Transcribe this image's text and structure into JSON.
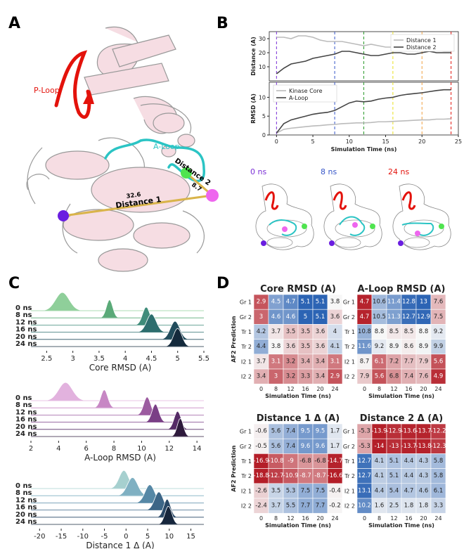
{
  "panels": {
    "A": "A",
    "B": "B",
    "C": "C",
    "D": "D"
  },
  "structure": {
    "ploop_label": "P-Loop",
    "aloop_label": "A-Loop",
    "distance1_label": "Distance 1",
    "distance2_label": "Distance 2",
    "distance1_value": "32.6",
    "distance2_value": "8.7",
    "snapshots": [
      "0 ns",
      "8 ns",
      "24 ns"
    ],
    "colors": {
      "ploop": "#e3120b",
      "aloop": "#2bc4c4",
      "protein": "#f6dde3",
      "res1": "#6a1ee0",
      "res2": "#4fe44f",
      "res3": "#ee66ee",
      "snap0": "#7a2fd6",
      "snap8": "#3555c8",
      "snap24": "#e3120b"
    }
  },
  "chart_data": [
    {
      "id": "B-top",
      "type": "line",
      "ylabel": "Distance (A)",
      "xlabel": "",
      "xlim": [
        -1,
        25
      ],
      "ylim": [
        0,
        35
      ],
      "yticks": [
        10,
        20,
        30
      ],
      "series": [
        {
          "name": "Distance 1",
          "color": "#bbbbbb",
          "x": [
            0,
            1,
            2,
            3,
            4,
            5,
            6,
            7,
            8,
            9,
            10,
            11,
            12,
            13,
            14,
            15,
            16,
            17,
            18,
            19,
            20,
            21,
            22,
            23,
            24
          ],
          "y": [
            31,
            31,
            30,
            32,
            32,
            31,
            29,
            28,
            28,
            28,
            27,
            26,
            25,
            26,
            25,
            24,
            24,
            25,
            23,
            22,
            22,
            22,
            22,
            21,
            21
          ]
        },
        {
          "name": "Distance 2",
          "color": "#444444",
          "x": [
            0,
            1,
            2,
            3,
            4,
            5,
            6,
            7,
            8,
            9,
            10,
            11,
            12,
            13,
            14,
            15,
            16,
            17,
            18,
            19,
            20,
            21,
            22,
            23,
            24
          ],
          "y": [
            5,
            9,
            12,
            13,
            14,
            16,
            17,
            18,
            19,
            21,
            21,
            20,
            19,
            18,
            18,
            19,
            20,
            20,
            19,
            19,
            20,
            21,
            20,
            20,
            20
          ]
        }
      ],
      "vlines": [
        {
          "x": 0,
          "color": "#7a2fd6"
        },
        {
          "x": 8,
          "color": "#3555c8"
        },
        {
          "x": 12,
          "color": "#2a9a2a"
        },
        {
          "x": 16,
          "color": "#e8e020"
        },
        {
          "x": 20,
          "color": "#f0a040"
        },
        {
          "x": 24,
          "color": "#e3120b"
        }
      ],
      "legend": "top-right"
    },
    {
      "id": "B-bottom",
      "type": "line",
      "ylabel": "RMSD (A)",
      "xlabel": "Simulation Time (ns)",
      "xlim": [
        -1,
        25
      ],
      "ylim": [
        0,
        14
      ],
      "yticks": [
        0,
        5,
        10
      ],
      "xticks": [
        0,
        5,
        10,
        15,
        20,
        25
      ],
      "series": [
        {
          "name": "Kinase Core",
          "color": "#bbbbbb",
          "x": [
            0,
            1,
            2,
            3,
            4,
            5,
            6,
            7,
            8,
            9,
            10,
            11,
            12,
            13,
            14,
            15,
            16,
            17,
            18,
            19,
            20,
            21,
            22,
            23,
            24
          ],
          "y": [
            0.5,
            1.5,
            1.8,
            2.0,
            2.2,
            2.4,
            2.5,
            2.7,
            2.8,
            3.0,
            3.1,
            3.2,
            3.2,
            3.3,
            3.5,
            3.5,
            3.6,
            3.7,
            3.8,
            3.9,
            4.0,
            4.0,
            4.2,
            4.2,
            4.3
          ]
        },
        {
          "name": "A-Loop",
          "color": "#444444",
          "x": [
            0,
            1,
            2,
            3,
            4,
            5,
            6,
            7,
            8,
            9,
            10,
            11,
            12,
            13,
            14,
            15,
            16,
            17,
            18,
            19,
            20,
            21,
            22,
            23,
            24
          ],
          "y": [
            0.5,
            3,
            4,
            4.5,
            5,
            5.5,
            5.8,
            6,
            6.5,
            7.5,
            8.5,
            9,
            8.8,
            9,
            9.5,
            9.8,
            10,
            10.5,
            10.8,
            11,
            11.2,
            11.5,
            11.8,
            12,
            12
          ]
        }
      ],
      "vlines": [
        {
          "x": 0,
          "color": "#7a2fd6"
        },
        {
          "x": 8,
          "color": "#3555c8"
        },
        {
          "x": 12,
          "color": "#2a9a2a"
        },
        {
          "x": 16,
          "color": "#e8e020"
        },
        {
          "x": 20,
          "color": "#f0a040"
        },
        {
          "x": 24,
          "color": "#e3120b"
        }
      ],
      "legend": "top-left"
    },
    {
      "id": "C1",
      "type": "area",
      "xlabel": "Core RMSD (A)",
      "xlim": [
        2.2,
        5.5
      ],
      "xticks": [
        2.5,
        3.0,
        3.5,
        4.0,
        4.5,
        5.0,
        5.5
      ],
      "rows": [
        {
          "label": "0 ns",
          "mean": 2.8,
          "sd": 0.13,
          "color": "#8fcf9a"
        },
        {
          "label": "8 ns",
          "mean": 3.7,
          "sd": 0.06,
          "color": "#5aaa78"
        },
        {
          "label": "12 ns",
          "mean": 4.4,
          "sd": 0.07,
          "color": "#3f8c7a"
        },
        {
          "label": "16 ns",
          "mean": 4.5,
          "sd": 0.09,
          "color": "#2d6e6e"
        },
        {
          "label": "20 ns",
          "mean": 4.95,
          "sd": 0.09,
          "color": "#214c5c"
        },
        {
          "label": "24 ns",
          "mean": 5.0,
          "sd": 0.08,
          "color": "#142a3c"
        }
      ]
    },
    {
      "id": "C2",
      "type": "area",
      "xlabel": "A-Loop RMSD (A)",
      "xlim": [
        2,
        14.5
      ],
      "xticks": [
        2,
        4,
        6,
        8,
        10,
        12,
        14
      ],
      "rows": [
        {
          "label": "0 ns",
          "mean": 4.5,
          "sd": 0.5,
          "color": "#e2b2de"
        },
        {
          "label": "8 ns",
          "mean": 7.3,
          "sd": 0.25,
          "color": "#c787c4"
        },
        {
          "label": "12 ns",
          "mean": 10.4,
          "sd": 0.25,
          "color": "#9c5ba0"
        },
        {
          "label": "16 ns",
          "mean": 11.0,
          "sd": 0.25,
          "color": "#7a3f86"
        },
        {
          "label": "20 ns",
          "mean": 12.6,
          "sd": 0.25,
          "color": "#552a66"
        },
        {
          "label": "24 ns",
          "mean": 12.8,
          "sd": 0.22,
          "color": "#2e1a3c"
        }
      ]
    },
    {
      "id": "C3",
      "type": "area",
      "xlabel": "Distance 1 Δ (A)",
      "xlim": [
        -22,
        18
      ],
      "xticks": [
        -20,
        -15,
        -10,
        -5,
        0,
        5,
        10,
        15
      ],
      "rows": [
        {
          "label": "0 ns",
          "mean": -0.5,
          "sd": 1.1,
          "color": "#a6d0cf"
        },
        {
          "label": "8 ns",
          "mean": 1.5,
          "sd": 1.2,
          "color": "#7fb0c2"
        },
        {
          "label": "12 ns",
          "mean": 5.5,
          "sd": 1.1,
          "color": "#5688a6"
        },
        {
          "label": "16 ns",
          "mean": 7.6,
          "sd": 1.0,
          "color": "#3d6687"
        },
        {
          "label": "20 ns",
          "mean": 9.5,
          "sd": 0.8,
          "color": "#284766"
        },
        {
          "label": "24 ns",
          "mean": 9.8,
          "sd": 0.8,
          "color": "#16263c"
        }
      ]
    },
    {
      "id": "D-core",
      "type": "heatmap",
      "title": "Core RMSD (A)",
      "rows": [
        "Gr 1",
        "Gr 2",
        "Tr 1",
        "Tr 2",
        "I2 1",
        "I2 2"
      ],
      "cols": [
        "0",
        "8",
        "12",
        "16",
        "20",
        "24"
      ],
      "values": [
        [
          2.9,
          4.5,
          4.7,
          5.1,
          5.1,
          3.8
        ],
        [
          3.0,
          4.6,
          4.6,
          5.0,
          5.1,
          3.6
        ],
        [
          4.2,
          3.7,
          3.5,
          3.5,
          3.6,
          4.0
        ],
        [
          4.4,
          3.8,
          3.6,
          3.5,
          3.6,
          4.1
        ],
        [
          3.7,
          3.1,
          3.2,
          3.4,
          3.4,
          3.1
        ],
        [
          3.4,
          3.0,
          3.2,
          3.3,
          3.4,
          2.9
        ]
      ],
      "center": 3.8,
      "span": 1.2,
      "ylabel": "AF2 Prediction",
      "xlabel": "Simulation Time (ns)"
    },
    {
      "id": "D-aloop",
      "type": "heatmap",
      "title": "A-Loop RMSD (A)",
      "rows": [
        "Gr 1",
        "Gr 2",
        "Tr 1",
        "Tr 2",
        "I2 1",
        "I2 2"
      ],
      "cols": [
        "0",
        "8",
        "12",
        "16",
        "20",
        "24"
      ],
      "values": [
        [
          4.7,
          10.6,
          11.4,
          12.8,
          13.0,
          7.6
        ],
        [
          4.7,
          10.5,
          11.3,
          12.7,
          12.9,
          7.5
        ],
        [
          10.8,
          8.8,
          8.5,
          8.5,
          8.8,
          9.2
        ],
        [
          11.6,
          9.2,
          8.9,
          8.6,
          8.9,
          9.9
        ],
        [
          8.7,
          6.1,
          7.2,
          7.7,
          7.9,
          5.6
        ],
        [
          7.9,
          5.6,
          6.8,
          7.4,
          7.6,
          4.9
        ]
      ],
      "center": 8.8,
      "span": 4.2,
      "xlabel": "Simulation Time (ns)"
    },
    {
      "id": "D-dist1",
      "type": "heatmap",
      "title": "Distance 1 Δ (A)",
      "rows": [
        "Gr 1",
        "Gr 2",
        "Tr 1",
        "Tr 2",
        "I2 1",
        "I2 2"
      ],
      "cols": [
        "0",
        "8",
        "12",
        "16",
        "20",
        "24"
      ],
      "values": [
        [
          -0.6,
          5.6,
          7.4,
          9.5,
          9.5,
          1.7
        ],
        [
          -0.5,
          5.6,
          7.4,
          9.6,
          9.6,
          1.7
        ],
        [
          -16.9,
          -10.8,
          -9.0,
          -6.8,
          -6.8,
          -14.7
        ],
        [
          -18.8,
          -12.7,
          -10.9,
          -8.7,
          -8.7,
          -16.6
        ],
        [
          -2.6,
          3.5,
          5.3,
          7.5,
          7.5,
          -0.4
        ],
        [
          -2.4,
          3.7,
          5.5,
          7.7,
          7.7,
          -0.2
        ]
      ],
      "center": 0,
      "span": 15,
      "ylabel": "AF2 Prediction",
      "xlabel": "Simulation Time (ns)"
    },
    {
      "id": "D-dist2",
      "type": "heatmap",
      "title": "Distance 2 Δ (A)",
      "rows": [
        "Gr 1",
        "Gr 2",
        "Tr 1",
        "Tr 2",
        "I2 1",
        "I2 2"
      ],
      "cols": [
        "0",
        "8",
        "12",
        "16",
        "20",
        "24"
      ],
      "values": [
        [
          -5.3,
          -13.9,
          -12.9,
          -13.6,
          -13.7,
          -12.2
        ],
        [
          -5.3,
          -14.0,
          -13.0,
          -13.7,
          -13.8,
          -12.3
        ],
        [
          12.7,
          4.1,
          5.1,
          4.4,
          4.3,
          5.8
        ],
        [
          12.7,
          4.1,
          5.1,
          4.4,
          4.3,
          5.8
        ],
        [
          13.1,
          4.4,
          5.4,
          4.7,
          4.6,
          6.1
        ],
        [
          10.2,
          1.6,
          2.5,
          1.8,
          1.8,
          3.3
        ]
      ],
      "center": 0,
      "span": 14,
      "xlabel": "Simulation Time (ns)"
    }
  ]
}
